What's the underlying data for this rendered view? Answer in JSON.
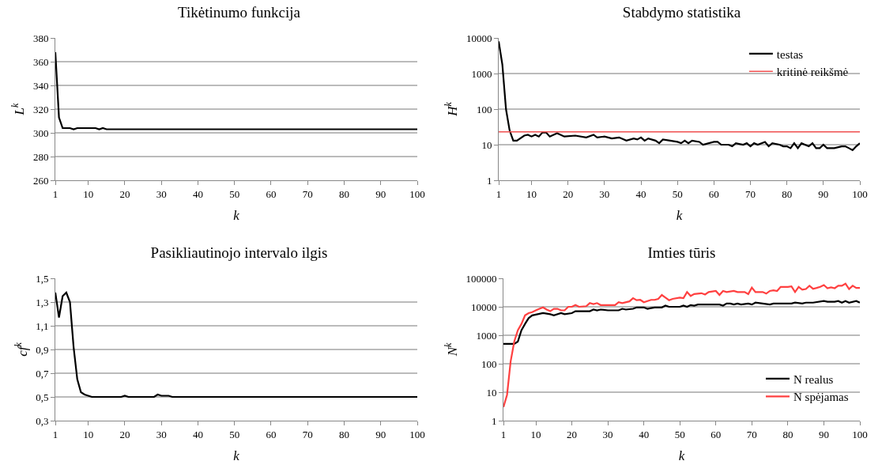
{
  "chart_data": [
    {
      "type": "line",
      "title": "Tikėtinumo funkcija",
      "xlabel": "k",
      "ylabel": "L$^{k}$",
      "xlim": [
        1,
        100
      ],
      "xticks": [
        1,
        10,
        20,
        30,
        40,
        50,
        60,
        70,
        80,
        90,
        100
      ],
      "ylim": [
        260,
        380
      ],
      "yticks": [
        260,
        280,
        300,
        320,
        340,
        360,
        380
      ],
      "grid": "y",
      "line_style": "solid",
      "series": [
        {
          "color": "#000000",
          "x": [
            1,
            2,
            3,
            5,
            6,
            7,
            12,
            13,
            14,
            15,
            100
          ],
          "values": [
            368,
            313,
            304,
            304,
            303,
            304,
            304,
            303,
            304,
            303,
            303
          ]
        }
      ]
    },
    {
      "type": "line",
      "title": "Stabdymo statistika",
      "xlabel": "k",
      "ylabel": "H$^{k}$",
      "log": "y",
      "xlim": [
        1,
        100
      ],
      "xticks": [
        1,
        10,
        20,
        30,
        40,
        50,
        60,
        70,
        80,
        90,
        100
      ],
      "ylim": [
        1,
        10000
      ],
      "yticks": [
        1,
        10,
        100,
        1000,
        10000
      ],
      "grid": "y",
      "legend": "top right",
      "line_style": "solid",
      "series": [
        {
          "name": "testas",
          "color": "#000000",
          "x": [
            1,
            2,
            3,
            4,
            5,
            6,
            8,
            9,
            10,
            11,
            12,
            13,
            14,
            15,
            17,
            19,
            22,
            25,
            27,
            28,
            30,
            32,
            34,
            36,
            38,
            39,
            40,
            41,
            42,
            44,
            45,
            46,
            48,
            50,
            51,
            52,
            53,
            54,
            56,
            57,
            60,
            61,
            62,
            64,
            65,
            66,
            68,
            69,
            70,
            71,
            72,
            74,
            75,
            76,
            78,
            79,
            80,
            81,
            82,
            83,
            84,
            86,
            87,
            88,
            89,
            90,
            91,
            93,
            95,
            96,
            97,
            98,
            99,
            100
          ],
          "values": [
            8000,
            1800,
            100,
            25,
            13,
            13,
            18,
            19,
            17,
            19,
            17,
            22,
            22,
            17,
            21,
            17,
            18,
            16,
            19,
            16,
            17,
            15,
            16,
            13,
            15,
            14,
            16,
            13,
            15,
            13,
            11,
            14,
            13,
            12,
            11,
            13,
            11,
            13,
            12,
            10,
            12,
            12,
            10,
            10,
            9,
            11,
            10,
            11,
            9,
            11,
            10,
            12,
            9,
            11,
            10,
            9,
            9,
            8,
            11,
            8,
            11,
            9,
            11,
            8,
            8,
            10,
            8,
            8,
            9,
            9,
            8,
            7,
            9,
            11
          ]
        }
      ],
      "ref_lines": [
        {
          "axis": "y",
          "value": 23,
          "label": "kritinė reikšmė",
          "color": "#f05050"
        }
      ]
    },
    {
      "type": "line",
      "title": "Pasikliautinojo intervalo ilgis",
      "xlabel": "k",
      "ylabel": "cf$^{k}$",
      "xlim": [
        1,
        100
      ],
      "xticks": [
        1,
        10,
        20,
        30,
        40,
        50,
        60,
        70,
        80,
        90,
        100
      ],
      "ylim": [
        0.3,
        1.5
      ],
      "yticks": [
        {
          "value": 0.3,
          "label": "0,3"
        },
        {
          "value": 0.5,
          "label": "0,5"
        },
        {
          "value": 0.7,
          "label": "0,7"
        },
        {
          "value": 0.9,
          "label": "0,9"
        },
        {
          "value": 1.1,
          "label": "1,1"
        },
        {
          "value": 1.3,
          "label": "1,3"
        },
        {
          "value": 1.5,
          "label": "1,5"
        }
      ],
      "grid": "y",
      "line_style": "solid",
      "series": [
        {
          "color": "#000000",
          "x": [
            1,
            2,
            3,
            4,
            5,
            6,
            7,
            8,
            9,
            10,
            11,
            19,
            20,
            21,
            28,
            29,
            30,
            32,
            33,
            100
          ],
          "values": [
            1.38,
            1.17,
            1.35,
            1.38,
            1.3,
            0.92,
            0.65,
            0.54,
            0.52,
            0.51,
            0.5,
            0.5,
            0.51,
            0.5,
            0.5,
            0.52,
            0.51,
            0.51,
            0.5,
            0.5
          ]
        }
      ]
    },
    {
      "type": "line",
      "title": "Imties tūris",
      "xlabel": "k",
      "ylabel": "N$^{k}$",
      "log": "y",
      "xlim": [
        1,
        100
      ],
      "xticks": [
        1,
        10,
        20,
        30,
        40,
        50,
        60,
        70,
        80,
        90,
        100
      ],
      "ylim": [
        1,
        100000
      ],
      "yticks": [
        1,
        10,
        100,
        1000,
        10000,
        100000
      ],
      "grid": "y",
      "legend": "bottom right",
      "line_style": "solid",
      "series": [
        {
          "name": "N realus",
          "color": "#000000",
          "x": [
            1,
            2,
            3,
            4,
            5,
            6,
            7,
            8,
            9,
            12,
            14,
            15,
            17,
            18,
            20,
            21,
            25,
            26,
            27,
            28,
            30,
            33,
            34,
            35,
            37,
            38,
            40,
            41,
            42,
            43,
            45,
            46,
            47,
            50,
            51,
            52,
            53,
            54,
            55,
            61,
            62,
            63,
            64,
            65,
            66,
            67,
            69,
            70,
            71,
            73,
            75,
            76,
            81,
            82,
            84,
            85,
            87,
            90,
            91,
            93,
            94,
            95,
            96,
            97,
            99,
            100
          ],
          "values": [
            500,
            500,
            500,
            500,
            600,
            1500,
            2500,
            4000,
            5000,
            6000,
            5500,
            5000,
            6000,
            5500,
            6000,
            7000,
            7000,
            8000,
            7500,
            8000,
            7500,
            7500,
            8500,
            8000,
            8500,
            9500,
            9500,
            8500,
            9000,
            9500,
            9500,
            11000,
            10000,
            10000,
            11000,
            10000,
            11500,
            11000,
            12000,
            12000,
            11000,
            13000,
            13000,
            12000,
            13000,
            12000,
            13000,
            12000,
            14000,
            13000,
            12000,
            13000,
            13000,
            14000,
            13000,
            14000,
            14000,
            16000,
            15000,
            15000,
            16000,
            14000,
            16000,
            14000,
            16000,
            14000
          ]
        },
        {
          "name": "N spėjamas",
          "color": "#ff4040",
          "x": [
            1,
            2,
            3,
            4,
            5,
            6,
            7,
            8,
            9,
            10,
            11,
            12,
            13,
            14,
            15,
            16,
            17,
            18,
            19,
            20,
            21,
            22,
            24,
            25,
            26,
            27,
            28,
            32,
            33,
            34,
            36,
            37,
            38,
            39,
            40,
            42,
            43,
            44,
            45,
            46,
            47,
            48,
            50,
            51,
            52,
            53,
            54,
            56,
            57,
            58,
            60,
            61,
            62,
            63,
            65,
            66,
            68,
            69,
            70,
            71,
            73,
            74,
            75,
            76,
            77,
            78,
            80,
            81,
            82,
            83,
            84,
            85,
            86,
            87,
            88,
            89,
            90,
            91,
            92,
            93,
            94,
            95,
            96,
            97,
            98,
            99,
            100
          ],
          "values": [
            3,
            8,
            120,
            600,
            1500,
            2500,
            5000,
            6000,
            6500,
            7500,
            8500,
            9500,
            8000,
            7000,
            8500,
            8500,
            7500,
            7500,
            10000,
            10000,
            11500,
            10000,
            10500,
            13500,
            12500,
            13500,
            11500,
            11500,
            14500,
            13500,
            15500,
            20000,
            17000,
            17500,
            14500,
            17500,
            17500,
            19000,
            26000,
            21000,
            17000,
            19000,
            21000,
            20000,
            33000,
            24000,
            28000,
            30000,
            27000,
            33000,
            36000,
            26000,
            36000,
            33000,
            36000,
            33000,
            33000,
            28000,
            47000,
            33000,
            33000,
            29000,
            36000,
            38000,
            36000,
            50000,
            50000,
            52000,
            33000,
            50000,
            40000,
            42000,
            55000,
            43000,
            46000,
            50000,
            58000,
            45000,
            48000,
            45000,
            55000,
            55000,
            65000,
            42000,
            55000,
            46000,
            46000
          ]
        }
      ]
    }
  ]
}
